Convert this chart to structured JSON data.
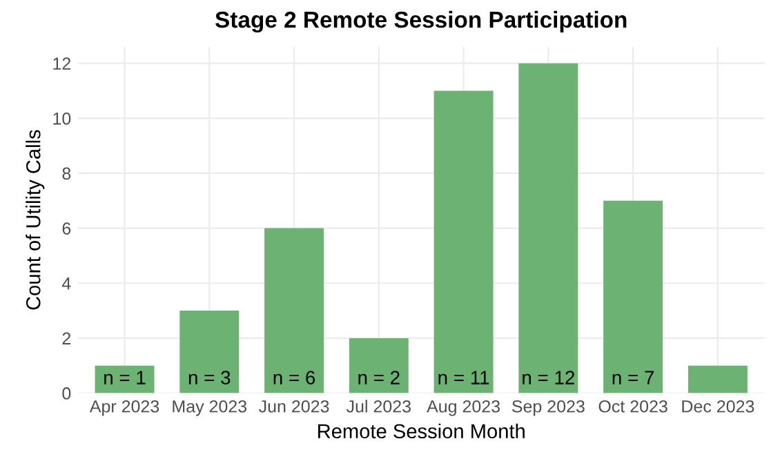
{
  "chart_data": {
    "type": "bar",
    "title": "Stage 2 Remote Session Participation",
    "xlabel": "Remote Session Month",
    "ylabel": "Count of Utility Calls",
    "categories": [
      "Apr 2023",
      "May 2023",
      "Jun 2023",
      "Jul 2023",
      "Aug 2023",
      "Sep 2023",
      "Oct 2023",
      "Dec 2023"
    ],
    "values": [
      1,
      3,
      6,
      2,
      11,
      12,
      7,
      1
    ],
    "value_labels": [
      "n = 1",
      "n = 3",
      "n = 6",
      "n = 2",
      "n = 11",
      "n = 12",
      "n = 7",
      null
    ],
    "color": "#6bb273",
    "ylim": [
      0,
      12.6
    ],
    "yticks": [
      0,
      2,
      4,
      6,
      8,
      10,
      12
    ],
    "grid": true
  }
}
